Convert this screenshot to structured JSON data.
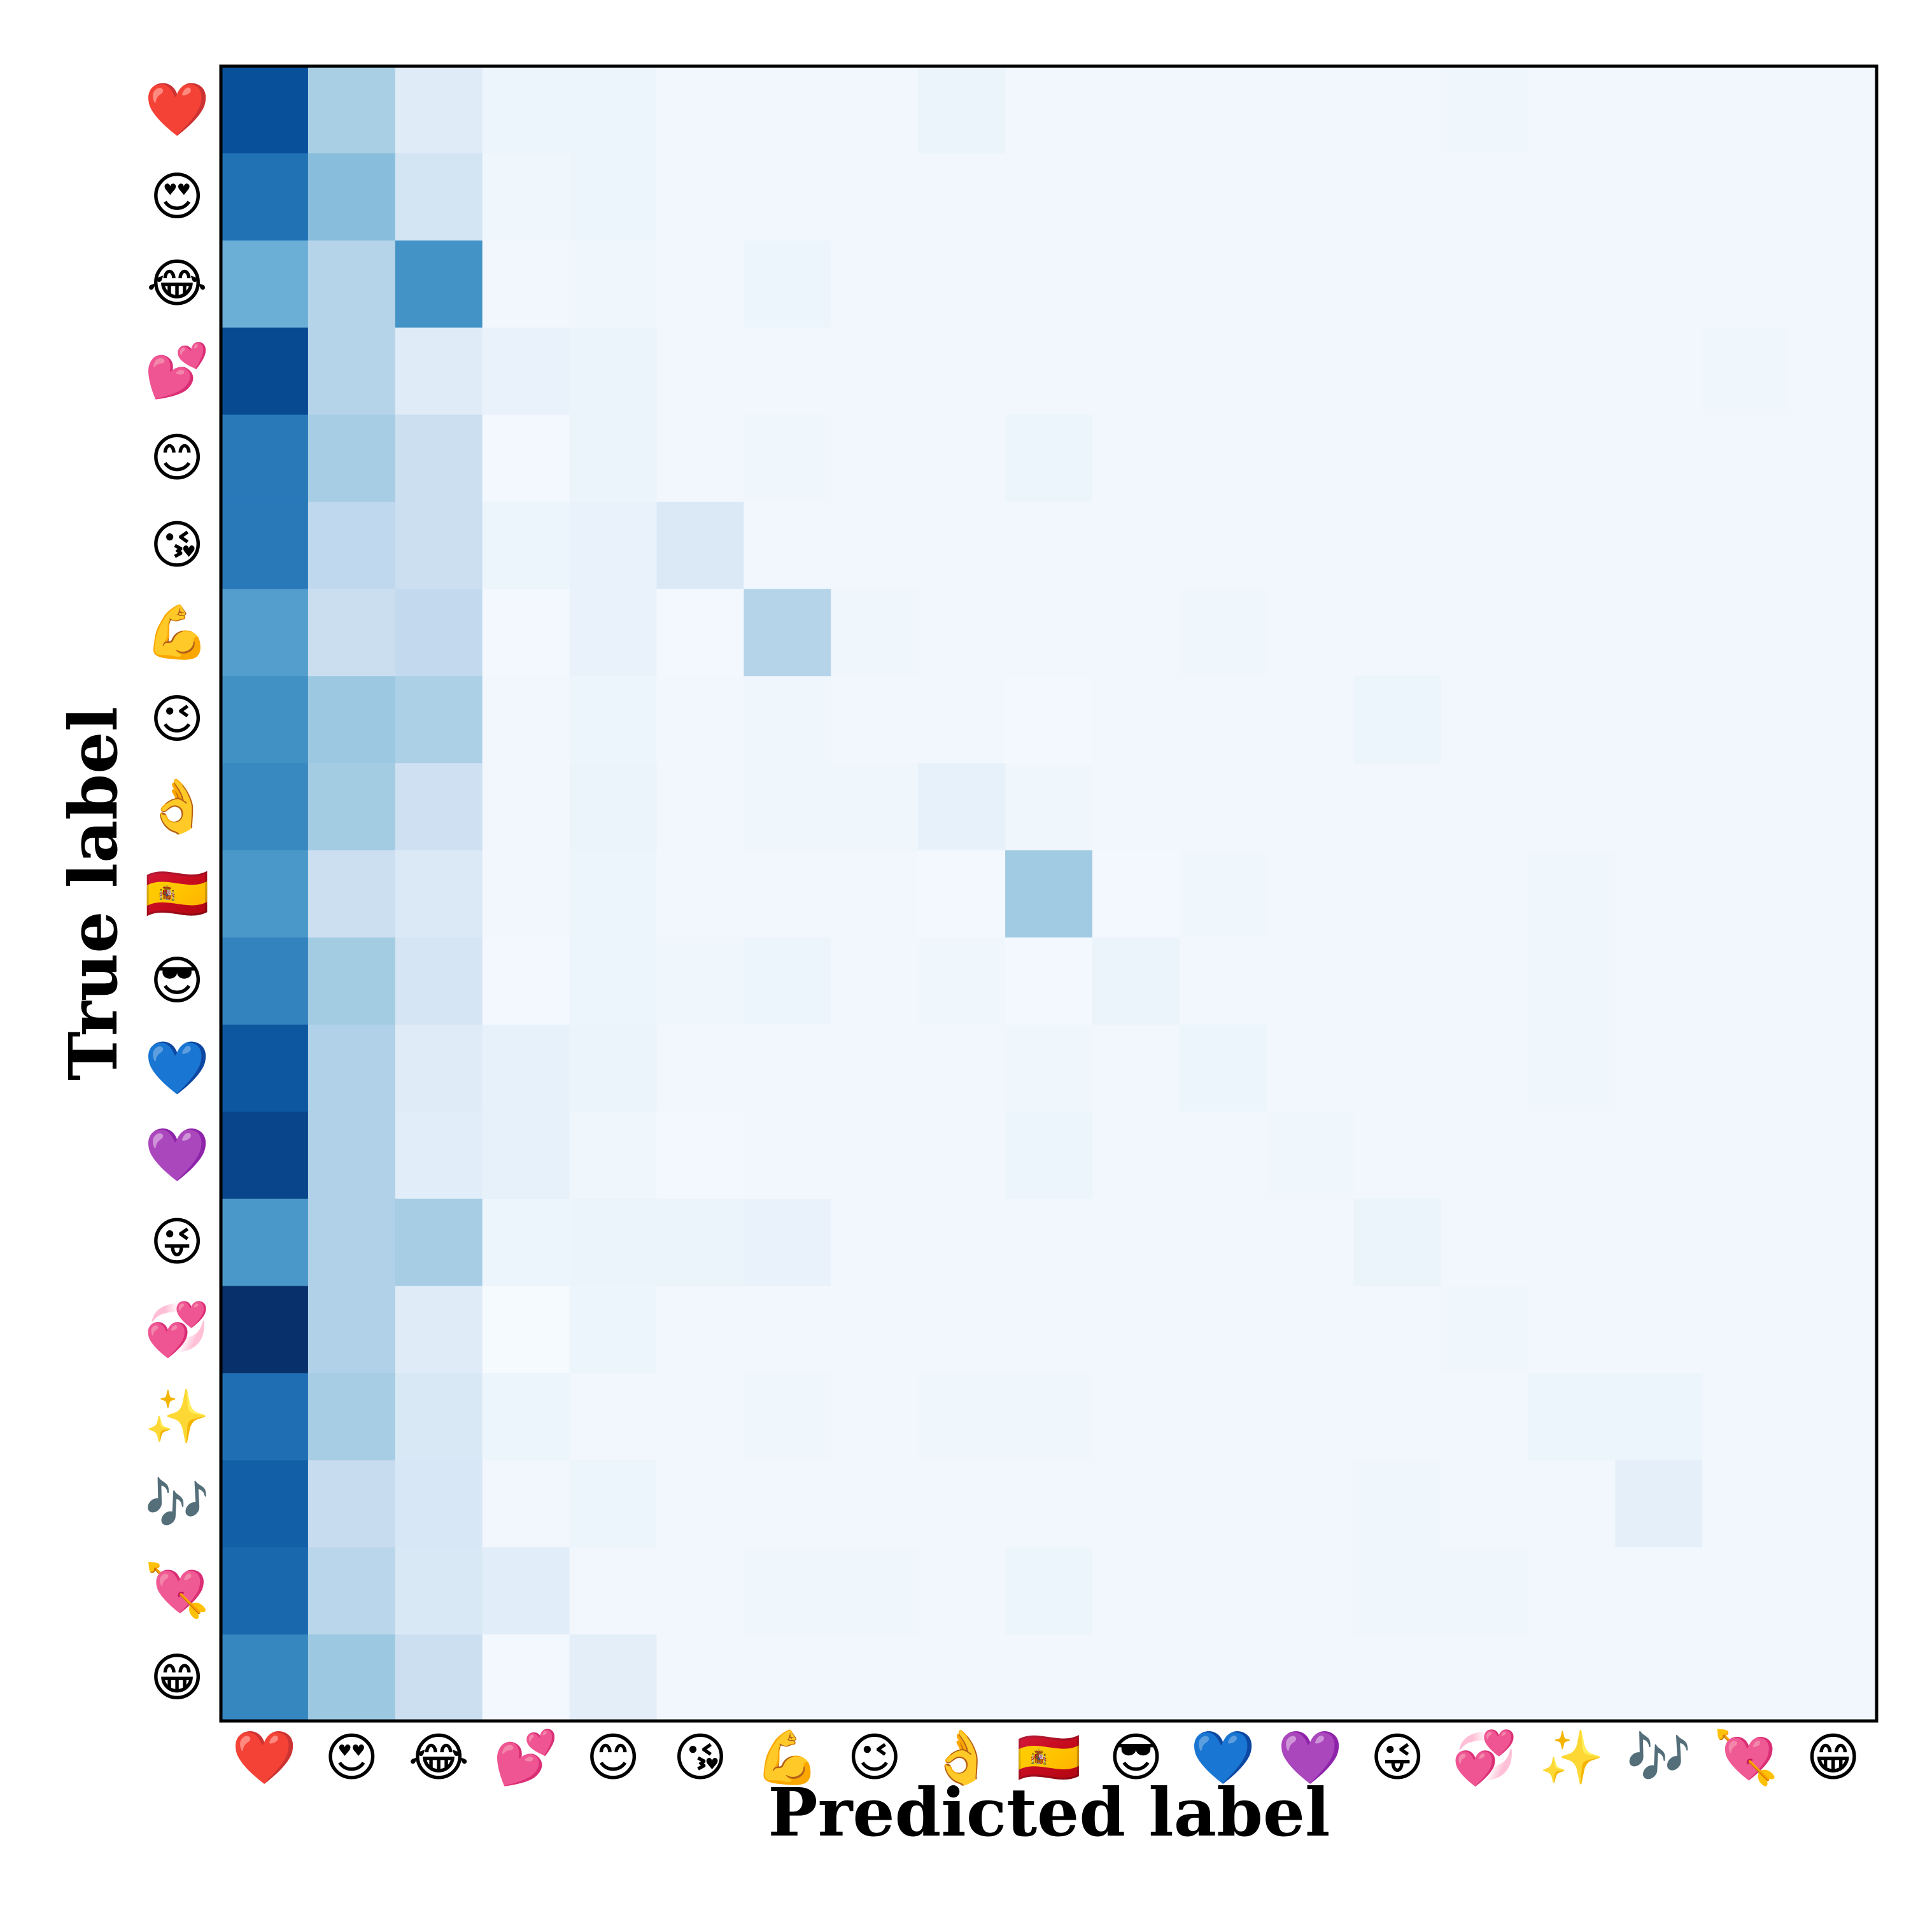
{
  "chart_data": {
    "type": "heatmap",
    "title": "",
    "xlabel": "Predicted label",
    "ylabel": "True label",
    "colormap": "Blues",
    "value_range": [
      0,
      1
    ],
    "labels": [
      "❤️",
      "😍",
      "😂",
      "💕",
      "😊",
      "😘",
      "💪",
      "😉",
      "👌",
      "🇪🇸",
      "😎",
      "💙",
      "💜",
      "😜",
      "💞",
      "✨",
      "🎶",
      "💘",
      "😁"
    ],
    "label_names": [
      "red-heart",
      "heart-eyes",
      "tears-of-joy",
      "two-hearts",
      "smiling-face",
      "kissing-face",
      "flexed-biceps",
      "winking-face",
      "ok-hand",
      "flag-spain",
      "sunglasses-face",
      "blue-heart",
      "purple-heart",
      "tongue-wink",
      "revolving-hearts",
      "sparkles",
      "musical-notes",
      "heart-with-arrow",
      "grinning-face"
    ],
    "values": [
      [
        0.88,
        0.34,
        0.12,
        0.05,
        0.05,
        0.03,
        0.03,
        0.03,
        0.06,
        0.03,
        0.03,
        0.03,
        0.03,
        0.03,
        0.04,
        0.03,
        0.03,
        0.03,
        0.03
      ],
      [
        0.75,
        0.43,
        0.18,
        0.04,
        0.05,
        0.03,
        0.03,
        0.03,
        0.03,
        0.03,
        0.03,
        0.03,
        0.03,
        0.03,
        0.03,
        0.03,
        0.03,
        0.03,
        0.03
      ],
      [
        0.5,
        0.3,
        0.62,
        0.03,
        0.04,
        0.03,
        0.05,
        0.03,
        0.03,
        0.03,
        0.03,
        0.03,
        0.03,
        0.03,
        0.03,
        0.03,
        0.03,
        0.03,
        0.03
      ],
      [
        0.9,
        0.3,
        0.12,
        0.07,
        0.06,
        0.03,
        0.03,
        0.03,
        0.03,
        0.03,
        0.03,
        0.03,
        0.03,
        0.03,
        0.03,
        0.03,
        0.03,
        0.04,
        0.03
      ],
      [
        0.72,
        0.35,
        0.22,
        0.02,
        0.06,
        0.03,
        0.04,
        0.03,
        0.03,
        0.05,
        0.03,
        0.03,
        0.03,
        0.03,
        0.03,
        0.03,
        0.03,
        0.03,
        0.03
      ],
      [
        0.72,
        0.27,
        0.22,
        0.05,
        0.07,
        0.14,
        0.03,
        0.03,
        0.03,
        0.03,
        0.03,
        0.03,
        0.03,
        0.03,
        0.03,
        0.03,
        0.03,
        0.03,
        0.03
      ],
      [
        0.57,
        0.23,
        0.26,
        0.02,
        0.07,
        0.02,
        0.3,
        0.04,
        0.03,
        0.03,
        0.03,
        0.04,
        0.03,
        0.03,
        0.03,
        0.03,
        0.03,
        0.03,
        0.03
      ],
      [
        0.63,
        0.38,
        0.33,
        0.03,
        0.05,
        0.03,
        0.04,
        0.03,
        0.03,
        0.02,
        0.03,
        0.03,
        0.03,
        0.05,
        0.03,
        0.03,
        0.03,
        0.03,
        0.03
      ],
      [
        0.66,
        0.36,
        0.21,
        0.03,
        0.06,
        0.03,
        0.04,
        0.04,
        0.08,
        0.04,
        0.03,
        0.03,
        0.03,
        0.03,
        0.03,
        0.03,
        0.03,
        0.03,
        0.03
      ],
      [
        0.6,
        0.22,
        0.14,
        0.03,
        0.05,
        0.03,
        0.03,
        0.03,
        0.02,
        0.37,
        0.02,
        0.04,
        0.03,
        0.03,
        0.03,
        0.04,
        0.03,
        0.03,
        0.03
      ],
      [
        0.68,
        0.36,
        0.17,
        0.02,
        0.05,
        0.04,
        0.05,
        0.03,
        0.04,
        0.02,
        0.06,
        0.03,
        0.03,
        0.03,
        0.03,
        0.04,
        0.03,
        0.03,
        0.03
      ],
      [
        0.85,
        0.32,
        0.12,
        0.08,
        0.06,
        0.03,
        0.03,
        0.03,
        0.03,
        0.04,
        0.03,
        0.05,
        0.03,
        0.03,
        0.03,
        0.04,
        0.03,
        0.03,
        0.03
      ],
      [
        0.92,
        0.32,
        0.11,
        0.08,
        0.04,
        0.02,
        0.03,
        0.03,
        0.03,
        0.05,
        0.03,
        0.03,
        0.04,
        0.03,
        0.03,
        0.03,
        0.03,
        0.03,
        0.03
      ],
      [
        0.6,
        0.32,
        0.35,
        0.05,
        0.06,
        0.06,
        0.07,
        0.03,
        0.03,
        0.03,
        0.03,
        0.03,
        0.03,
        0.06,
        0.03,
        0.03,
        0.03,
        0.03,
        0.03
      ],
      [
        1.0,
        0.32,
        0.12,
        0.01,
        0.05,
        0.03,
        0.03,
        0.03,
        0.03,
        0.03,
        0.03,
        0.03,
        0.03,
        0.03,
        0.04,
        0.03,
        0.03,
        0.03,
        0.03
      ],
      [
        0.76,
        0.35,
        0.15,
        0.05,
        0.03,
        0.03,
        0.04,
        0.03,
        0.04,
        0.04,
        0.03,
        0.03,
        0.03,
        0.03,
        0.03,
        0.05,
        0.05,
        0.03,
        0.03
      ],
      [
        0.82,
        0.24,
        0.16,
        0.03,
        0.05,
        0.03,
        0.03,
        0.03,
        0.03,
        0.03,
        0.03,
        0.03,
        0.03,
        0.04,
        0.03,
        0.03,
        0.09,
        0.03,
        0.03
      ],
      [
        0.79,
        0.29,
        0.15,
        0.11,
        0.03,
        0.03,
        0.04,
        0.04,
        0.03,
        0.05,
        0.03,
        0.03,
        0.03,
        0.04,
        0.04,
        0.03,
        0.03,
        0.03,
        0.03
      ],
      [
        0.67,
        0.38,
        0.22,
        0.02,
        0.1,
        0.03,
        0.03,
        0.03,
        0.03,
        0.03,
        0.03,
        0.03,
        0.03,
        0.03,
        0.03,
        0.03,
        0.03,
        0.03,
        0.03
      ]
    ],
    "grid": false,
    "legend": "none"
  }
}
